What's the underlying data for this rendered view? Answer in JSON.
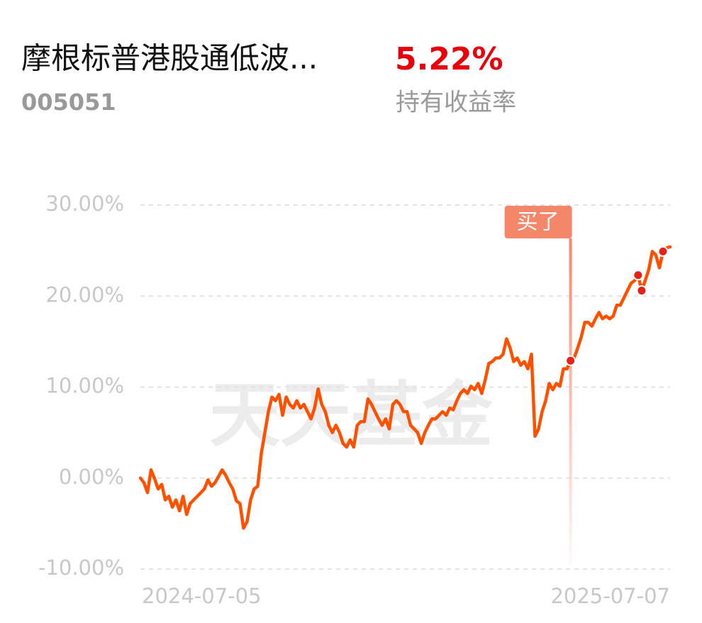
{
  "chart_data": {
    "type": "line",
    "title": "摩根标普港股通低波...",
    "subtitle": "005051",
    "return_value": "5.22%",
    "return_label": "持有收益率",
    "watermark": "天天基金",
    "color": "#ff5000",
    "categories": [
      "2024-07-05",
      null,
      null,
      null,
      null,
      null,
      null,
      null,
      null,
      null,
      null,
      null,
      null,
      null,
      null,
      null,
      null,
      null,
      null,
      null,
      null,
      null,
      null,
      null,
      null,
      null,
      null,
      null,
      null,
      null,
      null,
      null,
      null,
      null,
      null,
      null,
      null,
      null,
      null,
      null,
      null,
      null,
      null,
      null,
      null,
      null,
      null,
      null,
      null,
      null,
      null,
      null,
      null,
      null,
      null,
      null,
      null,
      null,
      null,
      null,
      null,
      null,
      null,
      null,
      null,
      null,
      null,
      null,
      null,
      null,
      null,
      null,
      null,
      null,
      null,
      null,
      null,
      null,
      null,
      null,
      null,
      null,
      null,
      null,
      null,
      null,
      null,
      null,
      null,
      null,
      null,
      null,
      null,
      null,
      null,
      null,
      null,
      null,
      null,
      null,
      null,
      null,
      null,
      null,
      null,
      null,
      null,
      null,
      null,
      null,
      null,
      null,
      null,
      null,
      null,
      null,
      null,
      null,
      null,
      null,
      null,
      null,
      null,
      null,
      null,
      null,
      null,
      null,
      null,
      null,
      null,
      null,
      null,
      null,
      null,
      null,
      null,
      null,
      null,
      null,
      null,
      null,
      null,
      null,
      null,
      null,
      null,
      null,
      null,
      "2025-07-07"
    ],
    "values": [
      0.0,
      -0.5,
      -1.6,
      0.9,
      -0.1,
      -1.2,
      -0.7,
      -2.4,
      -2.0,
      -3.2,
      -2.4,
      -3.6,
      -2.0,
      -4.0,
      -2.8,
      -2.4,
      -2.0,
      -1.6,
      -1.2,
      -0.2,
      -0.9,
      -0.5,
      0.2,
      0.9,
      0.3,
      -0.5,
      -1.2,
      -2.5,
      -2.8,
      -5.5,
      -4.8,
      -2.4,
      -1.2,
      -0.9,
      2.7,
      5.0,
      7.3,
      8.9,
      8.5,
      9.2,
      6.9,
      8.9,
      8.1,
      7.7,
      8.5,
      7.7,
      8.1,
      7.3,
      6.5,
      7.7,
      9.8,
      8.1,
      7.3,
      5.8,
      5.0,
      5.8,
      5.0,
      3.8,
      3.4,
      4.2,
      3.4,
      5.8,
      6.2,
      6.2,
      8.7,
      8.1,
      7.3,
      6.5,
      5.8,
      6.5,
      5.4,
      8.1,
      8.5,
      8.1,
      7.3,
      7.3,
      5.8,
      5.4,
      5.0,
      3.8,
      5.0,
      5.8,
      6.5,
      6.5,
      6.9,
      7.3,
      6.9,
      7.7,
      7.5,
      8.5,
      9.3,
      9.7,
      9.3,
      10.1,
      9.7,
      10.4,
      9.3,
      10.8,
      12.6,
      12.8,
      13.2,
      13.2,
      13.6,
      15.3,
      14.3,
      12.8,
      13.2,
      12.4,
      12.8,
      12.0,
      13.6,
      4.6,
      5.4,
      7.3,
      8.5,
      10.4,
      9.7,
      10.4,
      10.1,
      12.0,
      12.0,
      12.9,
      13.2,
      14.3,
      15.5,
      17.1,
      17.1,
      16.7,
      17.5,
      18.2,
      17.5,
      17.8,
      17.5,
      17.8,
      19.0,
      19.0,
      19.8,
      20.6,
      21.4,
      21.7,
      22.3,
      20.6,
      21.7,
      22.9,
      24.9,
      24.5,
      23.1,
      24.9,
      25.3,
      25.4
    ],
    "highlights": [
      121,
      140,
      141,
      147
    ],
    "annotation": {
      "text": "买了",
      "category_index": 121
    },
    "ylim": [
      -10,
      30
    ],
    "yticks": [
      {
        "value": -10,
        "label": "-10.00%"
      },
      {
        "value": 0,
        "label": "0.00%"
      },
      {
        "value": 10,
        "label": "10.00%"
      },
      {
        "value": 20,
        "label": "20.00%"
      },
      {
        "value": 30,
        "label": "30.00%"
      }
    ],
    "grid": true
  }
}
